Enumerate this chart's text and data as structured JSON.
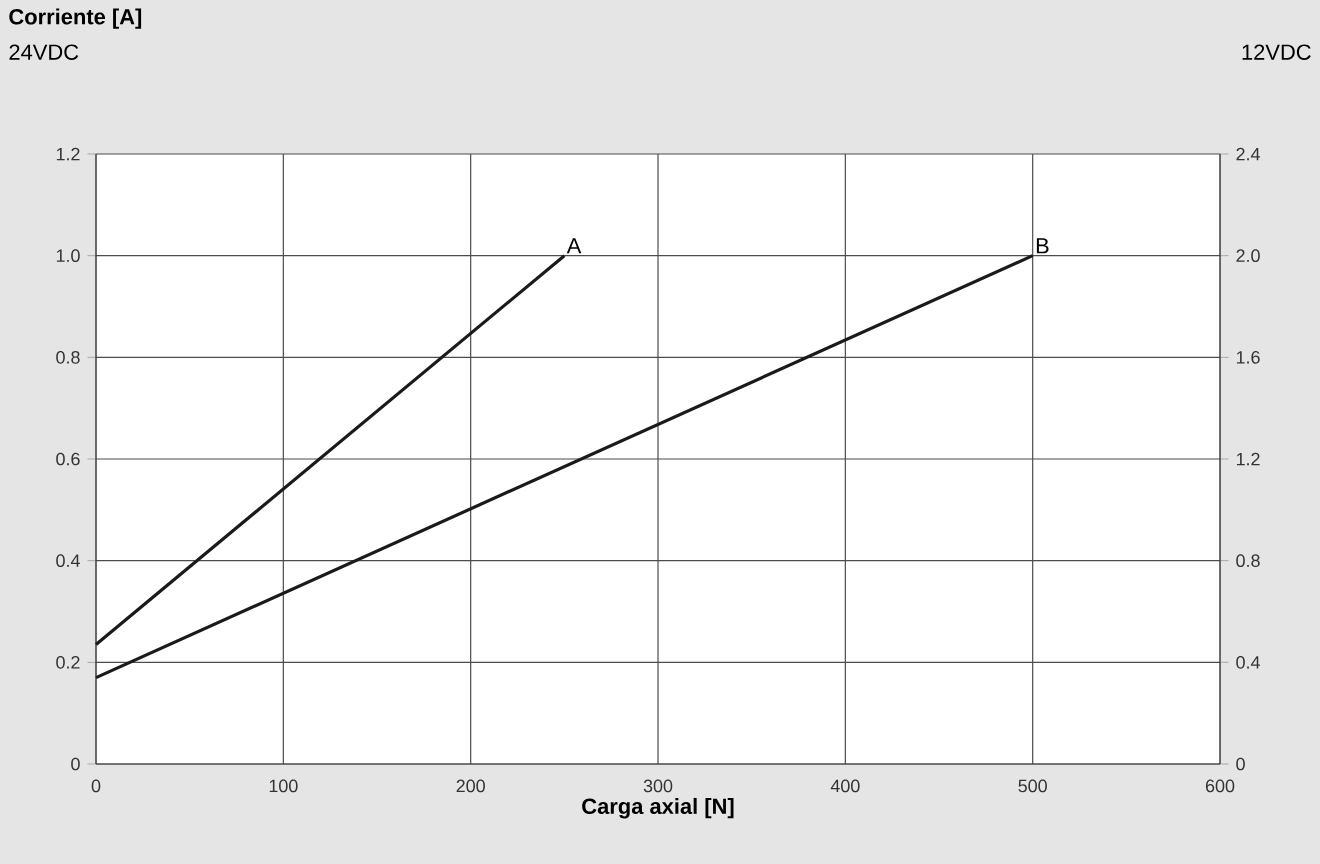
{
  "chart_data": {
    "type": "line",
    "title": "Corriente [A]",
    "xlabel": "Carga axial [N]",
    "ylabel": "24VDC",
    "y2label": "12VDC",
    "xlim": [
      0,
      600
    ],
    "xticks": [
      0,
      100,
      200,
      300,
      400,
      500,
      600
    ],
    "ylim": [
      0,
      1.2
    ],
    "yticks": [
      0,
      0.2,
      0.4,
      0.6,
      0.8,
      {
        "value": 1,
        "label": "1.0"
      },
      1.2
    ],
    "y2lim": [
      0,
      2.4
    ],
    "y2ticks": [
      0,
      0.4,
      0.8,
      1.2,
      1.6,
      {
        "value": 2,
        "label": "2.0"
      },
      2.4
    ],
    "grid": true,
    "marker": "none",
    "line_style": "solid",
    "series": [
      {
        "name": "A",
        "color": "#1a1a1a",
        "x": [
          0,
          250
        ],
        "values": [
          0.235,
          1.0
        ]
      },
      {
        "name": "B",
        "color": "#1a1a1a",
        "x": [
          0,
          500
        ],
        "values": [
          0.17,
          1.0
        ]
      }
    ]
  }
}
